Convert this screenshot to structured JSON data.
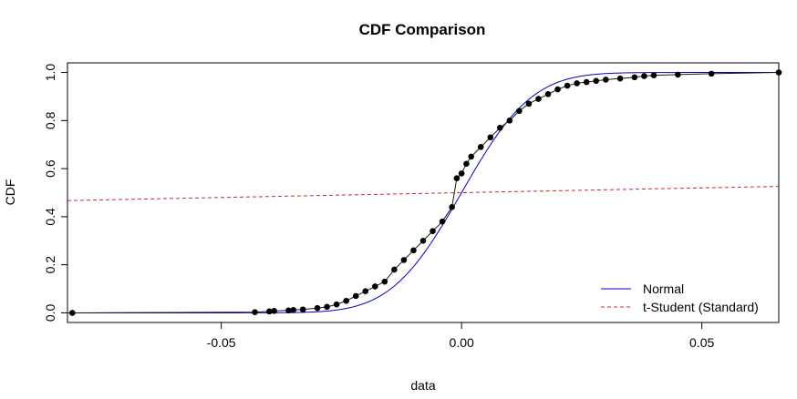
{
  "chart_data": {
    "type": "line",
    "title": "CDF Comparison",
    "xlabel": "data",
    "ylabel": "CDF",
    "xlim": [
      -0.082,
      0.066
    ],
    "ylim": [
      0,
      1
    ],
    "x_ticks": [
      {
        "value": -0.05,
        "label": "-0.05"
      },
      {
        "value": 0.0,
        "label": "0.00"
      },
      {
        "value": 0.05,
        "label": "0.05"
      }
    ],
    "y_ticks": [
      {
        "value": 0.0,
        "label": "0.0"
      },
      {
        "value": 0.2,
        "label": "0.2"
      },
      {
        "value": 0.4,
        "label": "0.4"
      },
      {
        "value": 0.6,
        "label": "0.6"
      },
      {
        "value": 0.8,
        "label": "0.8"
      },
      {
        "value": 1.0,
        "label": "1.0"
      }
    ],
    "grid": false,
    "legend_position": "bottom-right",
    "series": [
      {
        "name": "Normal",
        "color": "#0000CD",
        "style": "solid",
        "kind": "normal_cdf",
        "mean": 0.0,
        "sd": 0.0115
      },
      {
        "name": "t-Student (Standard)",
        "color": "#CD2626",
        "style": "dashed",
        "x": [
          -0.082,
          -0.06,
          -0.04,
          -0.02,
          0.0,
          0.02,
          0.04,
          0.066
        ],
        "y": [
          0.467,
          0.476,
          0.484,
          0.492,
          0.5,
          0.508,
          0.516,
          0.526
        ]
      },
      {
        "kind": "empirical_points",
        "color": "#000000",
        "x": [
          -0.081,
          -0.043,
          -0.04,
          -0.039,
          -0.036,
          -0.035,
          -0.033,
          -0.03,
          -0.028,
          -0.026,
          -0.024,
          -0.022,
          -0.02,
          -0.018,
          -0.016,
          -0.014,
          -0.012,
          -0.01,
          -0.008,
          -0.006,
          -0.004,
          -0.002,
          -0.001,
          0.0,
          0.001,
          0.002,
          0.004,
          0.006,
          0.008,
          0.01,
          0.012,
          0.014,
          0.016,
          0.018,
          0.02,
          0.022,
          0.024,
          0.026,
          0.028,
          0.03,
          0.033,
          0.036,
          0.038,
          0.04,
          0.045,
          0.052,
          0.066
        ],
        "y": [
          0.0,
          0.003,
          0.006,
          0.008,
          0.01,
          0.012,
          0.014,
          0.02,
          0.025,
          0.035,
          0.05,
          0.07,
          0.09,
          0.11,
          0.13,
          0.18,
          0.22,
          0.26,
          0.3,
          0.34,
          0.38,
          0.44,
          0.56,
          0.58,
          0.62,
          0.65,
          0.69,
          0.73,
          0.77,
          0.8,
          0.84,
          0.87,
          0.89,
          0.91,
          0.93,
          0.945,
          0.955,
          0.96,
          0.965,
          0.97,
          0.975,
          0.98,
          0.985,
          0.988,
          0.991,
          0.995,
          1.0
        ]
      }
    ]
  }
}
